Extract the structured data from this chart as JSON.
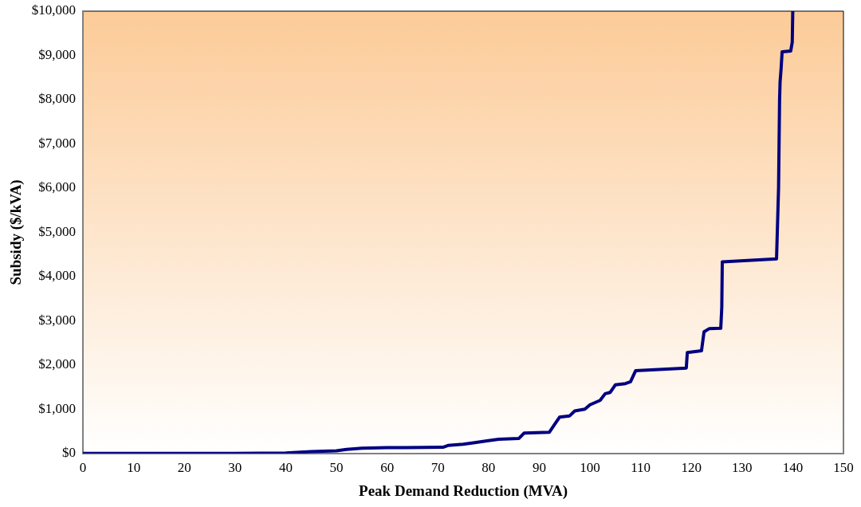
{
  "chart_data": {
    "type": "line",
    "xlabel": "Peak Demand Reduction (MVA)",
    "ylabel": "Subsidy ($/kVA)",
    "xlim": [
      0,
      150
    ],
    "xticks": [
      0,
      10,
      20,
      30,
      40,
      50,
      60,
      70,
      80,
      90,
      100,
      110,
      120,
      130,
      140,
      150
    ],
    "ylim": [
      0,
      10000
    ],
    "yticks": [
      {
        "value": 0,
        "label": "$0"
      },
      {
        "value": 1000,
        "label": "$1,000"
      },
      {
        "value": 2000,
        "label": "$2,000"
      },
      {
        "value": 3000,
        "label": "$3,000"
      },
      {
        "value": 4000,
        "label": "$4,000"
      },
      {
        "value": 5000,
        "label": "$5,000"
      },
      {
        "value": 6000,
        "label": "$6,000"
      },
      {
        "value": 7000,
        "label": "$7,000"
      },
      {
        "value": 8000,
        "label": "$8,000"
      },
      {
        "value": 9000,
        "label": "$9,000"
      },
      {
        "value": 10000,
        "label": "$10,000"
      }
    ],
    "grid": false,
    "legend": false,
    "marker": "none",
    "line_style": "solid",
    "series": [
      {
        "color": "#000080",
        "x": [
          0,
          30,
          40,
          45,
          50,
          52,
          55,
          60,
          71,
          72,
          75,
          77,
          80,
          82,
          86,
          87,
          92,
          93,
          94,
          96,
          97,
          99,
          100,
          101,
          102,
          103,
          104,
          105,
          107,
          108,
          109,
          119,
          119.2,
          122,
          122.5,
          123.5,
          125.8,
          126,
          126.1,
          136.8,
          137.2,
          137.4,
          137.5,
          137.7,
          137.9,
          139.6,
          139.9,
          140
        ],
        "values": [
          0,
          0,
          10,
          40,
          60,
          90,
          120,
          130,
          140,
          180,
          210,
          240,
          290,
          320,
          340,
          460,
          480,
          650,
          820,
          850,
          960,
          1000,
          1100,
          1150,
          1200,
          1350,
          1380,
          1550,
          1580,
          1620,
          1870,
          1930,
          2280,
          2320,
          2750,
          2820,
          2830,
          3300,
          4330,
          4400,
          6000,
          8000,
          8400,
          8700,
          9080,
          9100,
          9300,
          10000
        ]
      }
    ]
  }
}
